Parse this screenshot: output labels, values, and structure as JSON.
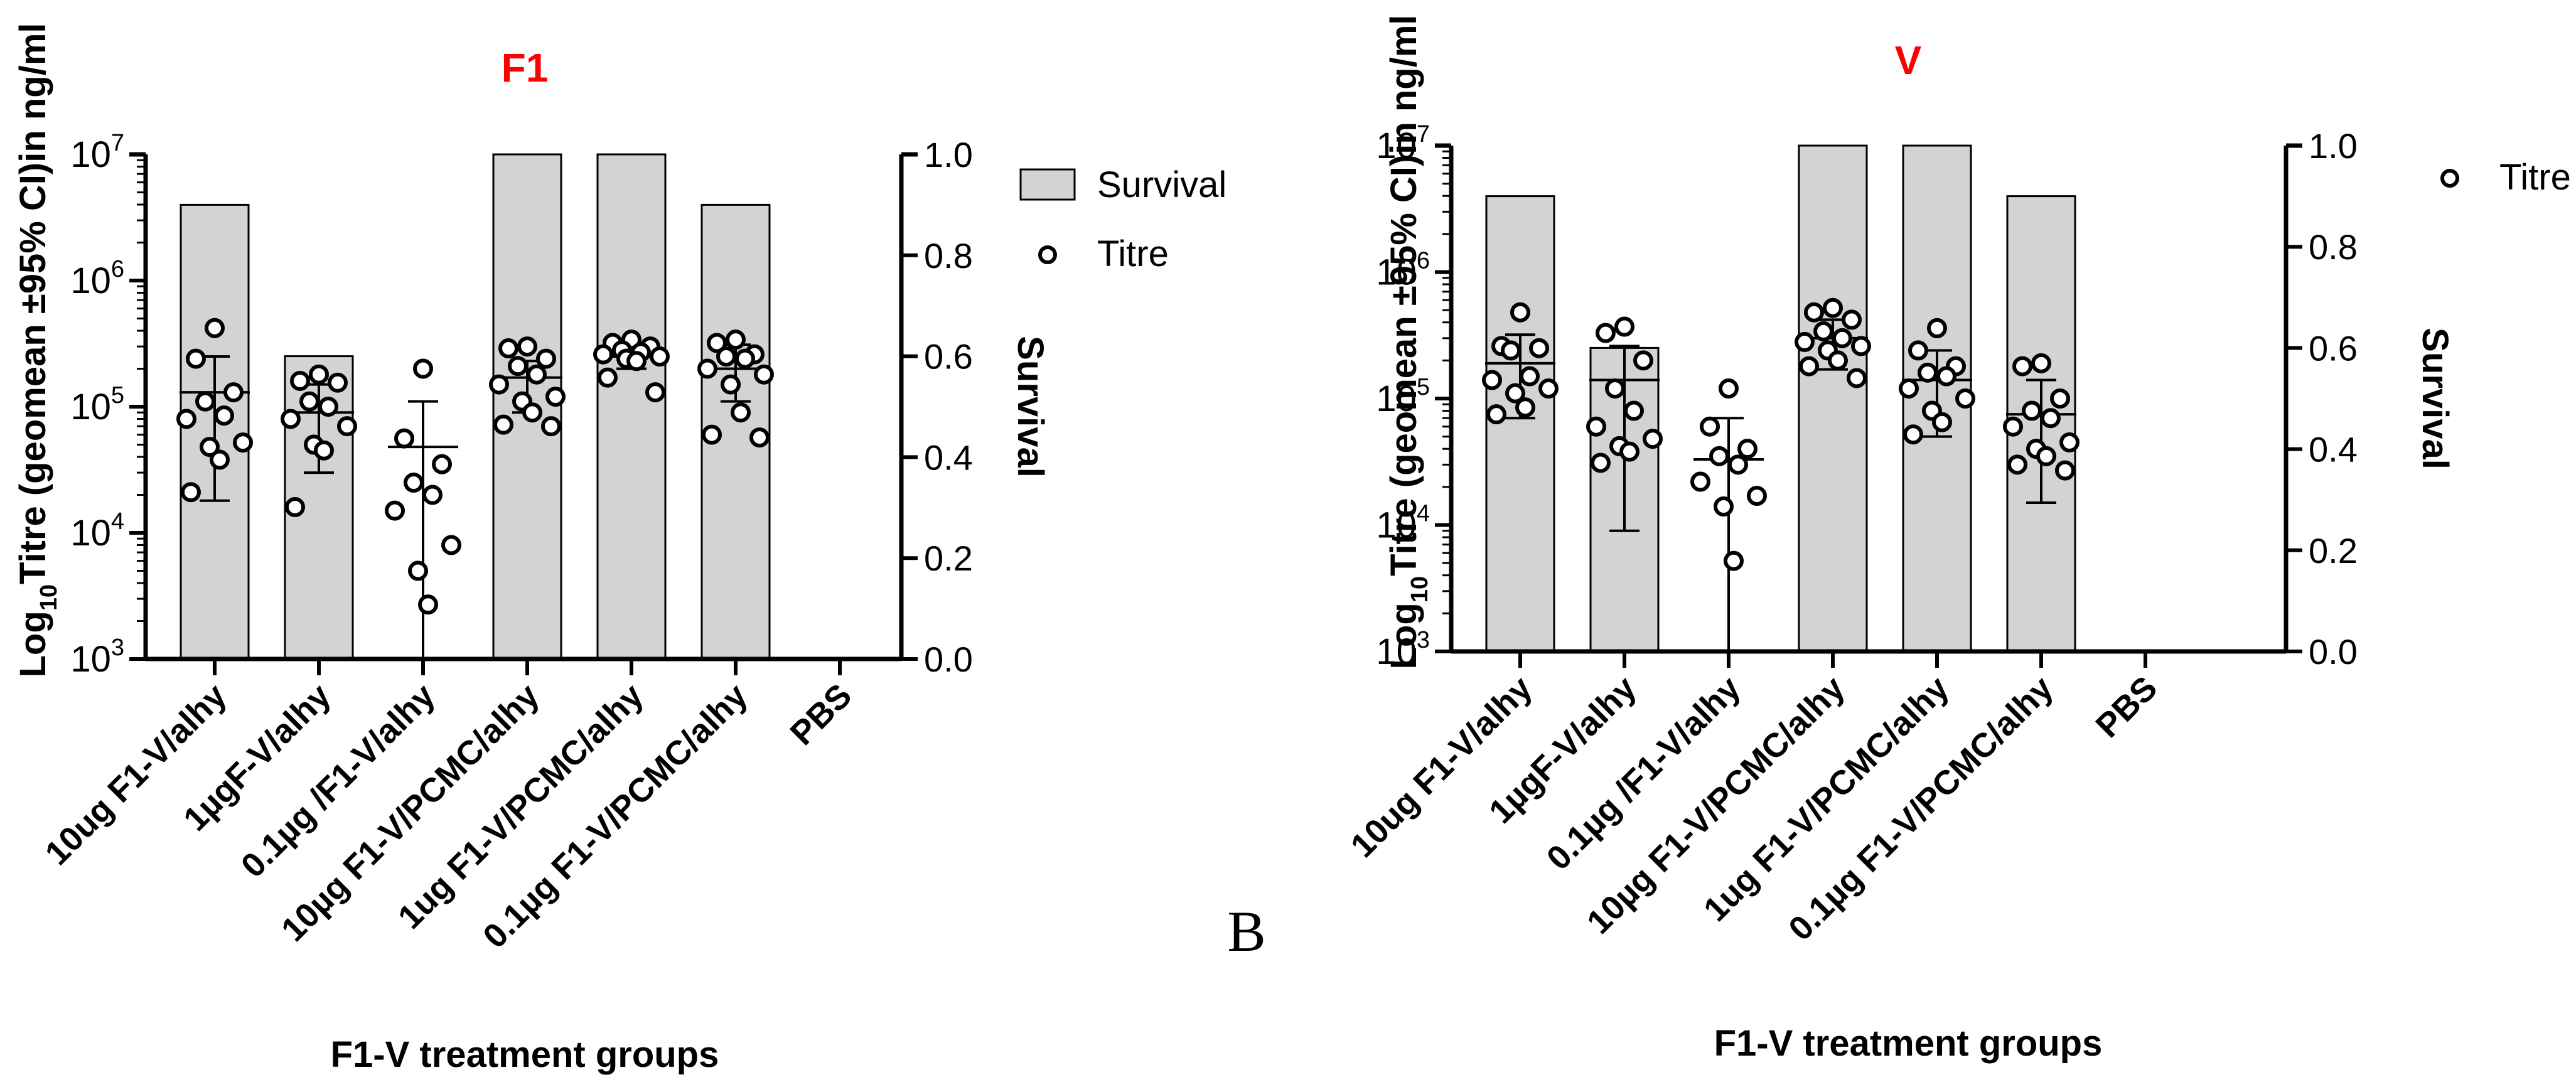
{
  "panel_label": "B",
  "colors": {
    "title": "#ff0000",
    "bar_fill": "#d3d3d3",
    "bar_stroke": "#000000",
    "marker_stroke": "#000000",
    "axis": "#000000"
  },
  "chart_data": [
    {
      "id": "f1",
      "type": "bar",
      "title": "F1",
      "xlabel": "F1-V treatment groups",
      "ylabel_prefix": "Log",
      "ylabel_sub": "10",
      "ylabel_rest": "Titre (geomean ±95% CI)in ng/ml",
      "y2label": "Survival",
      "yscale": "log",
      "ylim_log10": [
        3,
        7
      ],
      "yticks": [
        {
          "base": "10",
          "exp": "3"
        },
        {
          "base": "10",
          "exp": "4"
        },
        {
          "base": "10",
          "exp": "5"
        },
        {
          "base": "10",
          "exp": "6"
        },
        {
          "base": "10",
          "exp": "7"
        }
      ],
      "y2lim": [
        0,
        1
      ],
      "y2ticks": [
        "0.0",
        "0.2",
        "0.4",
        "0.6",
        "0.8",
        "1.0"
      ],
      "legend": [
        "Survival",
        "Titre"
      ],
      "categories": [
        "10ug F1-V/alhy",
        "1µgF-V/alhy",
        "0.1µg /F1-V/alhy",
        "10µg F1-V/PCMC/alhy",
        "1ug F1-V/PCMC/alhy",
        "0.1µg F1-V/PCMC/alhy",
        "PBS"
      ],
      "survival": [
        0.9,
        0.6,
        0.0,
        1.0,
        1.0,
        0.9,
        0.0
      ],
      "geomean": [
        130000,
        90000,
        48000,
        170000,
        250000,
        200000,
        null
      ],
      "ci_low": [
        18000,
        30000,
        0,
        90000,
        200000,
        110000,
        null
      ],
      "ci_high": [
        250000,
        150000,
        110000,
        230000,
        310000,
        310000,
        null
      ],
      "points": [
        [
          420000,
          240000,
          130000,
          110000,
          85000,
          80000,
          52000,
          48000,
          38000,
          21000
        ],
        [
          180000,
          160000,
          155000,
          110000,
          100000,
          80000,
          70000,
          50000,
          45000,
          16000
        ],
        [
          200000,
          56000,
          35000,
          25000,
          20000,
          15000,
          8000,
          5000,
          2700
        ],
        [
          300000,
          290000,
          240000,
          210000,
          180000,
          150000,
          120000,
          110000,
          90000,
          72000,
          70000
        ],
        [
          340000,
          320000,
          300000,
          280000,
          270000,
          260000,
          250000,
          240000,
          230000,
          170000,
          130000
        ],
        [
          340000,
          320000,
          260000,
          250000,
          240000,
          200000,
          180000,
          150000,
          90000,
          60000,
          57000
        ],
        []
      ]
    },
    {
      "id": "v",
      "type": "bar",
      "title": "V",
      "xlabel": "F1-V treatment groups",
      "ylabel_prefix": "Log",
      "ylabel_sub": "10",
      "ylabel_rest": "Titre (geomean ±95% CI)in ng/ml",
      "y2label": "Survival",
      "yscale": "log",
      "ylim_log10": [
        3,
        7
      ],
      "yticks": [
        {
          "base": "10",
          "exp": "3"
        },
        {
          "base": "10",
          "exp": "4"
        },
        {
          "base": "10",
          "exp": "5"
        },
        {
          "base": "10",
          "exp": "6"
        },
        {
          "base": "10",
          "exp": "7"
        }
      ],
      "y2lim": [
        0,
        1
      ],
      "y2ticks": [
        "0.0",
        "0.2",
        "0.4",
        "0.6",
        "0.8",
        "1.0"
      ],
      "legend": [
        "Titre"
      ],
      "categories": [
        "10ug F1-V/alhy",
        "1µgF-V/alhy",
        "0.1µg /F1-V/alhy",
        "10µg F1-V/PCMC/alhy",
        "1ug F1-V/PCMC/alhy",
        "0.1µg F1-V/PCMC/alhy",
        "PBS"
      ],
      "survival": [
        0.9,
        0.6,
        0.0,
        1.0,
        1.0,
        0.9,
        0.0
      ],
      "geomean": [
        190000,
        140000,
        33000,
        300000,
        140000,
        75000,
        null
      ],
      "ci_low": [
        70000,
        9000,
        0,
        170000,
        50000,
        15000,
        null
      ],
      "ci_high": [
        320000,
        260000,
        70000,
        420000,
        240000,
        140000,
        null
      ],
      "points": [
        [
          480000,
          260000,
          250000,
          240000,
          150000,
          140000,
          120000,
          110000,
          85000,
          75000
        ],
        [
          370000,
          330000,
          200000,
          120000,
          80000,
          60000,
          48000,
          42000,
          38000,
          31000
        ],
        [
          120000,
          60000,
          40000,
          35000,
          30000,
          22000,
          17000,
          14000,
          5200
        ],
        [
          520000,
          480000,
          420000,
          340000,
          300000,
          280000,
          260000,
          240000,
          200000,
          180000,
          145000
        ],
        [
          360000,
          240000,
          180000,
          160000,
          150000,
          120000,
          100000,
          80000,
          65000,
          52000
        ],
        [
          190000,
          180000,
          100000,
          80000,
          70000,
          60000,
          45000,
          40000,
          35000,
          30000,
          27000
        ],
        []
      ]
    }
  ]
}
